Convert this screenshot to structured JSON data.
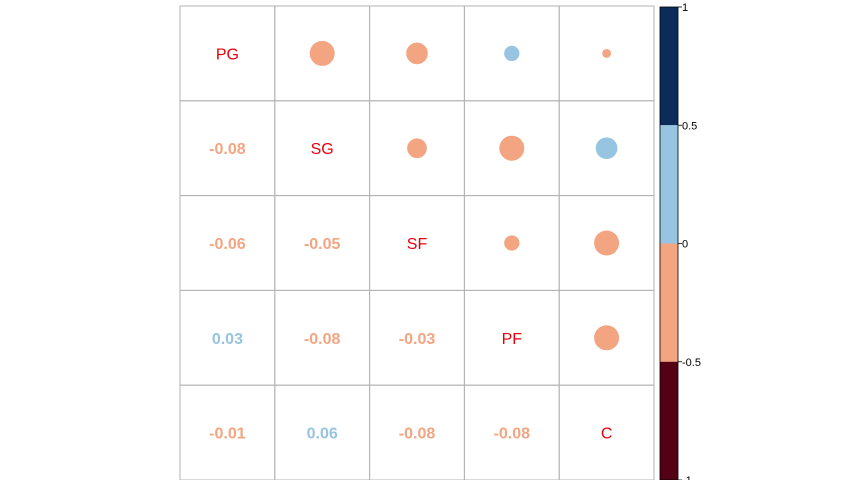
{
  "chart_data": {
    "type": "heatmap",
    "variables": [
      "PG",
      "SG",
      "SF",
      "PF",
      "C"
    ],
    "matrix": [
      [
        1.0,
        -0.08,
        -0.06,
        0.03,
        -0.01
      ],
      [
        -0.08,
        1.0,
        -0.05,
        -0.08,
        0.06
      ],
      [
        -0.06,
        -0.05,
        1.0,
        -0.03,
        -0.08
      ],
      [
        0.03,
        -0.08,
        -0.03,
        1.0,
        -0.08
      ],
      [
        -0.01,
        0.06,
        -0.08,
        -0.08,
        1.0
      ]
    ],
    "lower_labels": [
      {
        "row": 1,
        "col": 0,
        "text": "-0.08"
      },
      {
        "row": 2,
        "col": 0,
        "text": "-0.06"
      },
      {
        "row": 2,
        "col": 1,
        "text": "-0.05"
      },
      {
        "row": 3,
        "col": 0,
        "text": "0.03"
      },
      {
        "row": 3,
        "col": 1,
        "text": "-0.08"
      },
      {
        "row": 3,
        "col": 2,
        "text": "-0.03"
      },
      {
        "row": 4,
        "col": 0,
        "text": "-0.01"
      },
      {
        "row": 4,
        "col": 1,
        "text": "0.06"
      },
      {
        "row": 4,
        "col": 2,
        "text": "-0.08"
      },
      {
        "row": 4,
        "col": 3,
        "text": "-0.08"
      }
    ],
    "lower_method": "number",
    "upper_method": "circle",
    "diagonal_label_color": "#e8000b",
    "colorbar": {
      "range": [
        -1,
        1
      ],
      "ticks": [
        "1",
        "0.5",
        "0",
        "-0.5",
        "-1"
      ],
      "tick_values": [
        1,
        0.5,
        0,
        -0.5,
        -1
      ],
      "bins": [
        {
          "from": 0.5,
          "to": 1,
          "color": "#0b2c5a"
        },
        {
          "from": 0,
          "to": 0.5,
          "color": "#97c4e0"
        },
        {
          "from": -0.5,
          "to": 0,
          "color": "#f3a582"
        },
        {
          "from": -1,
          "to": -0.5,
          "color": "#540015"
        }
      ]
    },
    "grid_color": "#b3b3b3"
  }
}
